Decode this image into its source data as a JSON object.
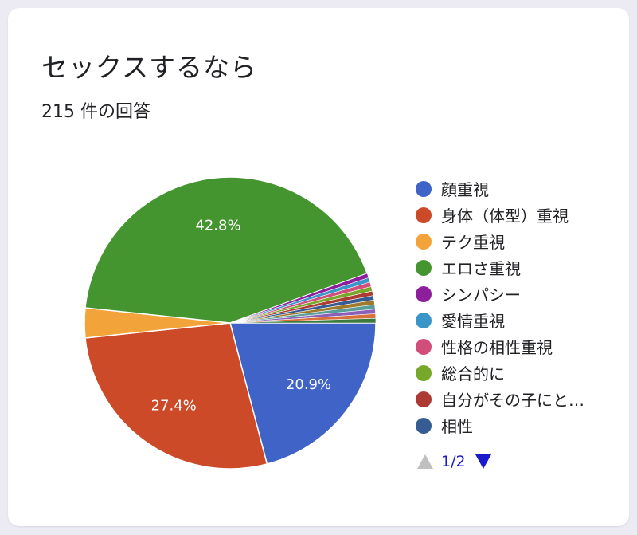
{
  "header": {
    "title": "セックスするなら",
    "subtitle": "215 件の回答"
  },
  "pager": {
    "label": "1/2"
  },
  "chart_data": {
    "type": "pie",
    "title": "セックスするなら",
    "total_responses": 215,
    "slices": [
      {
        "label": "顔重視",
        "value": 20.9,
        "display": "20.9%",
        "color": "#4063c7"
      },
      {
        "label": "身体（体型）重視",
        "value": 27.4,
        "display": "27.4%",
        "color": "#cc4a28"
      },
      {
        "label": "テク重視",
        "value": 3.3,
        "display": "",
        "color": "#f2a33a"
      },
      {
        "label": "エロさ重視",
        "value": 42.8,
        "display": "42.8%",
        "color": "#44952f"
      },
      {
        "label": "シンパシー",
        "value": 0.5,
        "display": "",
        "color": "#8e1f9c"
      },
      {
        "label": "愛情重視",
        "value": 0.5,
        "display": "",
        "color": "#3a96c8"
      },
      {
        "label": "性格の相性重視",
        "value": 0.5,
        "display": "",
        "color": "#d14e7b"
      },
      {
        "label": "総合的に",
        "value": 0.5,
        "display": "",
        "color": "#77a82a"
      },
      {
        "label": "自分がその子にと…",
        "value": 0.5,
        "display": "",
        "color": "#ad3a33"
      },
      {
        "label": "相性",
        "value": 0.5,
        "display": "",
        "color": "#365c94"
      },
      {
        "label": "",
        "value": 0.5,
        "display": "",
        "color": "#a07a2a"
      },
      {
        "label": "",
        "value": 0.5,
        "display": "",
        "color": "#5a9e9a"
      },
      {
        "label": "",
        "value": 0.5,
        "display": "",
        "color": "#8c5fb8"
      },
      {
        "label": "",
        "value": 0.5,
        "display": "",
        "color": "#d8703a"
      },
      {
        "label": "",
        "value": 0.5,
        "display": "",
        "color": "#3b7a3b"
      }
    ]
  }
}
